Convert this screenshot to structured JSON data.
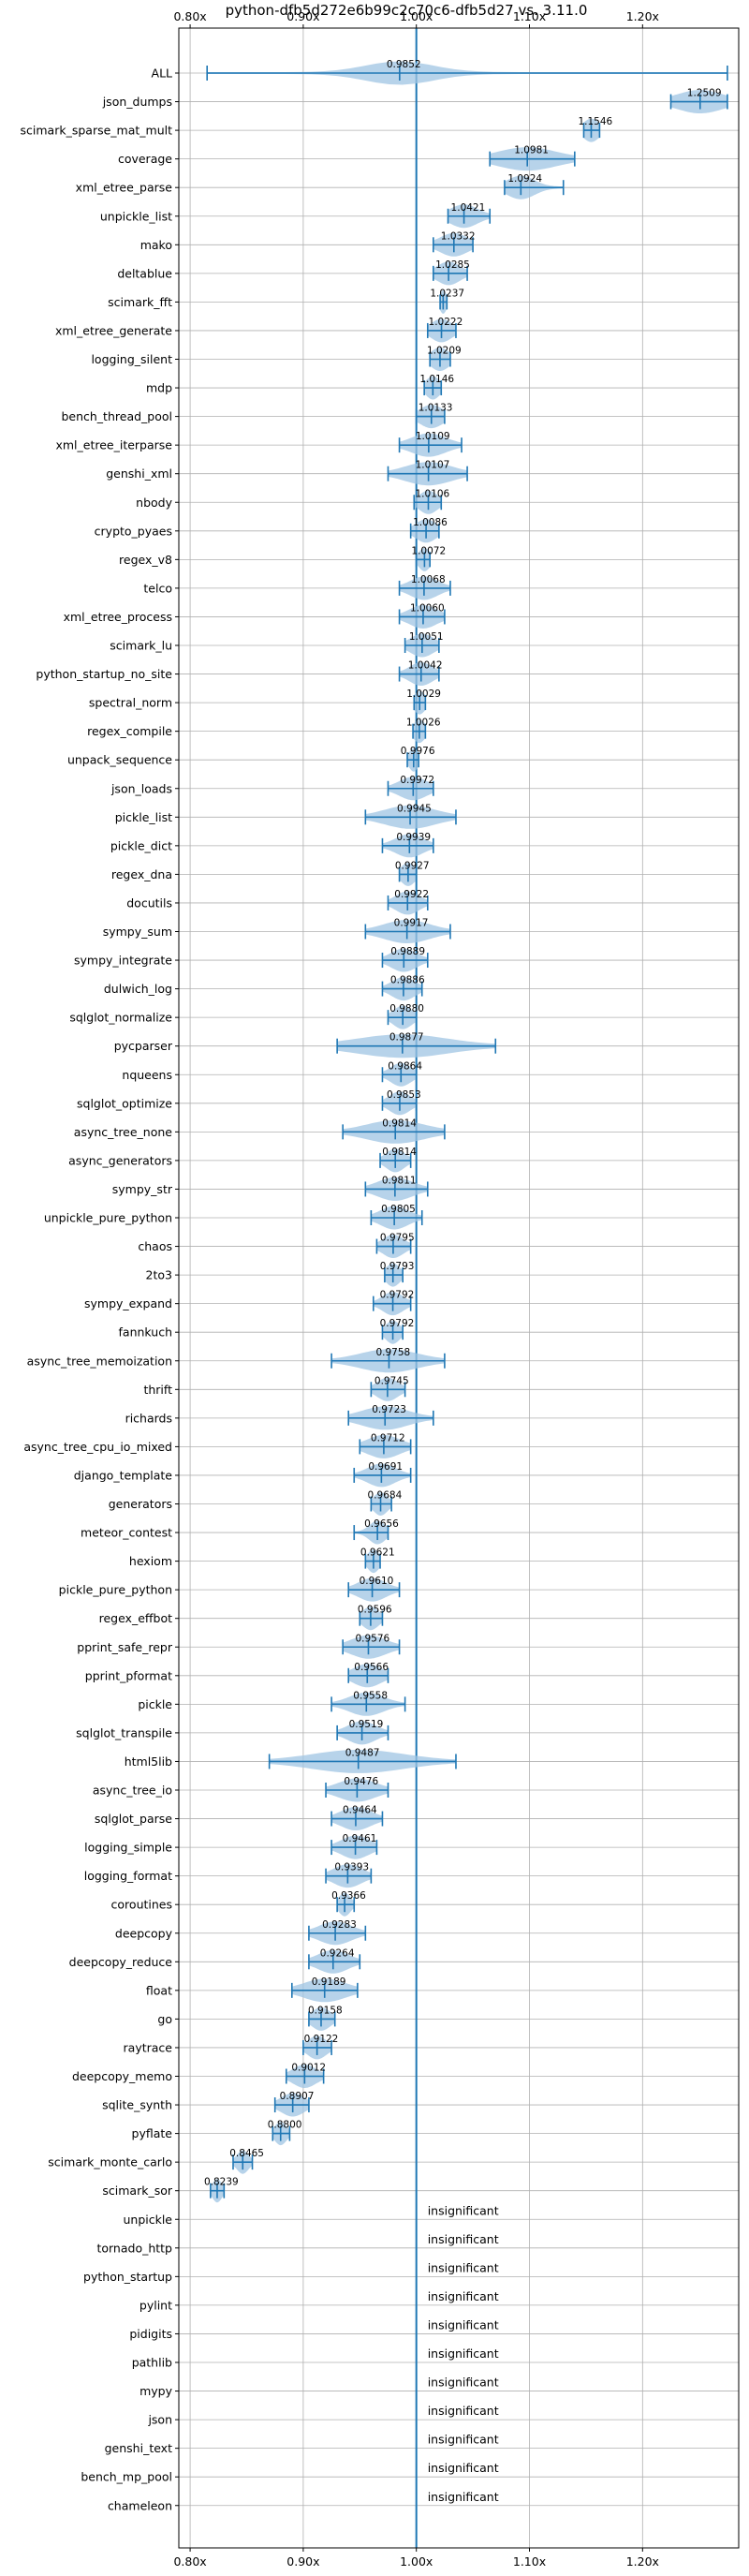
{
  "chart_data": {
    "type": "violin",
    "title": "python-dfb5d272e6b99c2c70c6-dfb5d27 vs. 3.11.0",
    "xlim": [
      0.79,
      1.285
    ],
    "xticks": [
      0.8,
      0.9,
      1.0,
      1.1,
      1.2
    ],
    "xtick_labels": [
      "0.80x",
      "0.90x",
      "1.00x",
      "1.10x",
      "1.20x"
    ],
    "reference_line": 1.0,
    "grid": true,
    "insignificant_label": "insignificant",
    "benchmarks": [
      {
        "name": "ALL",
        "value": 0.9852,
        "label": "0.9852",
        "min": 0.815,
        "max": 1.275,
        "spread": 0.03
      },
      {
        "name": "json_dumps",
        "value": 1.2509,
        "label": "1.2509",
        "min": 1.225,
        "max": 1.275,
        "spread": 0.02
      },
      {
        "name": "scimark_sparse_mat_mult",
        "value": 1.1546,
        "label": "1.1546",
        "min": 1.148,
        "max": 1.162,
        "spread": 0.007
      },
      {
        "name": "coverage",
        "value": 1.0981,
        "label": "1.0981",
        "min": 1.065,
        "max": 1.14,
        "spread": 0.025
      },
      {
        "name": "xml_etree_parse",
        "value": 1.0924,
        "label": "1.0924",
        "min": 1.078,
        "max": 1.13,
        "spread": 0.012
      },
      {
        "name": "unpickle_list",
        "value": 1.0421,
        "label": "1.0421",
        "min": 1.028,
        "max": 1.065,
        "spread": 0.012
      },
      {
        "name": "mako",
        "value": 1.0332,
        "label": "1.0332",
        "min": 1.015,
        "max": 1.05,
        "spread": 0.012
      },
      {
        "name": "deltablue",
        "value": 1.0285,
        "label": "1.0285",
        "min": 1.015,
        "max": 1.045,
        "spread": 0.01
      },
      {
        "name": "scimark_fft",
        "value": 1.0237,
        "label": "1.0237",
        "min": 1.021,
        "max": 1.027,
        "spread": 0.003
      },
      {
        "name": "xml_etree_generate",
        "value": 1.0222,
        "label": "1.0222",
        "min": 1.01,
        "max": 1.035,
        "spread": 0.009
      },
      {
        "name": "logging_silent",
        "value": 1.0209,
        "label": "1.0209",
        "min": 1.012,
        "max": 1.03,
        "spread": 0.008
      },
      {
        "name": "mdp",
        "value": 1.0146,
        "label": "1.0146",
        "min": 1.007,
        "max": 1.022,
        "spread": 0.006
      },
      {
        "name": "bench_thread_pool",
        "value": 1.0133,
        "label": "1.0133",
        "min": 1.0,
        "max": 1.025,
        "spread": 0.01
      },
      {
        "name": "xml_etree_iterparse",
        "value": 1.0109,
        "label": "1.0109",
        "min": 0.985,
        "max": 1.04,
        "spread": 0.015
      },
      {
        "name": "genshi_xml",
        "value": 1.0107,
        "label": "1.0107",
        "min": 0.975,
        "max": 1.045,
        "spread": 0.02
      },
      {
        "name": "nbody",
        "value": 1.0106,
        "label": "1.0106",
        "min": 0.998,
        "max": 1.022,
        "spread": 0.008
      },
      {
        "name": "crypto_pyaes",
        "value": 1.0086,
        "label": "1.0086",
        "min": 0.995,
        "max": 1.02,
        "spread": 0.009
      },
      {
        "name": "regex_v8",
        "value": 1.0072,
        "label": "1.0072",
        "min": 1.0,
        "max": 1.012,
        "spread": 0.005
      },
      {
        "name": "telco",
        "value": 1.0068,
        "label": "1.0068",
        "min": 0.985,
        "max": 1.03,
        "spread": 0.012
      },
      {
        "name": "xml_etree_process",
        "value": 1.006,
        "label": "1.0060",
        "min": 0.985,
        "max": 1.025,
        "spread": 0.012
      },
      {
        "name": "scimark_lu",
        "value": 1.0051,
        "label": "1.0051",
        "min": 0.99,
        "max": 1.02,
        "spread": 0.01
      },
      {
        "name": "python_startup_no_site",
        "value": 1.0042,
        "label": "1.0042",
        "min": 0.985,
        "max": 1.02,
        "spread": 0.01
      },
      {
        "name": "spectral_norm",
        "value": 1.0029,
        "label": "1.0029",
        "min": 0.998,
        "max": 1.008,
        "spread": 0.005
      },
      {
        "name": "regex_compile",
        "value": 1.0026,
        "label": "1.0026",
        "min": 0.997,
        "max": 1.008,
        "spread": 0.005
      },
      {
        "name": "unpack_sequence",
        "value": 0.9976,
        "label": "0.9976",
        "min": 0.992,
        "max": 1.002,
        "spread": 0.004
      },
      {
        "name": "json_loads",
        "value": 0.9972,
        "label": "0.9972",
        "min": 0.975,
        "max": 1.015,
        "spread": 0.012
      },
      {
        "name": "pickle_list",
        "value": 0.9945,
        "label": "0.9945",
        "min": 0.955,
        "max": 1.035,
        "spread": 0.022
      },
      {
        "name": "pickle_dict",
        "value": 0.9939,
        "label": "0.9939",
        "min": 0.97,
        "max": 1.015,
        "spread": 0.012
      },
      {
        "name": "regex_dna",
        "value": 0.9927,
        "label": "0.9927",
        "min": 0.985,
        "max": 1.0,
        "spread": 0.006
      },
      {
        "name": "docutils",
        "value": 0.9922,
        "label": "0.9922",
        "min": 0.975,
        "max": 1.01,
        "spread": 0.01
      },
      {
        "name": "sympy_sum",
        "value": 0.9917,
        "label": "0.9917",
        "min": 0.955,
        "max": 1.03,
        "spread": 0.02
      },
      {
        "name": "sympy_integrate",
        "value": 0.9889,
        "label": "0.9889",
        "min": 0.97,
        "max": 1.01,
        "spread": 0.011
      },
      {
        "name": "dulwich_log",
        "value": 0.9886,
        "label": "0.9886",
        "min": 0.97,
        "max": 1.005,
        "spread": 0.01
      },
      {
        "name": "sqlglot_normalize",
        "value": 0.988,
        "label": "0.9880",
        "min": 0.975,
        "max": 1.0,
        "spread": 0.008
      },
      {
        "name": "pycparser",
        "value": 0.9877,
        "label": "0.9877",
        "min": 0.93,
        "max": 1.07,
        "spread": 0.04
      },
      {
        "name": "nqueens",
        "value": 0.9864,
        "label": "0.9864",
        "min": 0.97,
        "max": 1.0,
        "spread": 0.009
      },
      {
        "name": "sqlglot_optimize",
        "value": 0.9853,
        "label": "0.9853",
        "min": 0.97,
        "max": 1.0,
        "spread": 0.009
      },
      {
        "name": "async_tree_none",
        "value": 0.9814,
        "label": "0.9814",
        "min": 0.935,
        "max": 1.025,
        "spread": 0.025
      },
      {
        "name": "async_generators",
        "value": 0.9814,
        "label": "0.9814",
        "min": 0.968,
        "max": 0.995,
        "spread": 0.008
      },
      {
        "name": "sympy_str",
        "value": 0.9811,
        "label": "0.9811",
        "min": 0.955,
        "max": 1.01,
        "spread": 0.015
      },
      {
        "name": "unpickle_pure_python",
        "value": 0.9805,
        "label": "0.9805",
        "min": 0.96,
        "max": 1.005,
        "spread": 0.012
      },
      {
        "name": "chaos",
        "value": 0.9795,
        "label": "0.9795",
        "min": 0.965,
        "max": 0.995,
        "spread": 0.009
      },
      {
        "name": "2to3",
        "value": 0.9793,
        "label": "0.9793",
        "min": 0.972,
        "max": 0.988,
        "spread": 0.006
      },
      {
        "name": "sympy_expand",
        "value": 0.9792,
        "label": "0.9792",
        "min": 0.962,
        "max": 0.995,
        "spread": 0.009
      },
      {
        "name": "fannkuch",
        "value": 0.9792,
        "label": "0.9792",
        "min": 0.97,
        "max": 0.988,
        "spread": 0.006
      },
      {
        "name": "async_tree_memoization",
        "value": 0.9758,
        "label": "0.9758",
        "min": 0.925,
        "max": 1.025,
        "spread": 0.025
      },
      {
        "name": "thrift",
        "value": 0.9745,
        "label": "0.9745",
        "min": 0.96,
        "max": 0.99,
        "spread": 0.009
      },
      {
        "name": "richards",
        "value": 0.9723,
        "label": "0.9723",
        "min": 0.94,
        "max": 1.015,
        "spread": 0.02
      },
      {
        "name": "async_tree_cpu_io_mixed",
        "value": 0.9712,
        "label": "0.9712",
        "min": 0.95,
        "max": 0.995,
        "spread": 0.014
      },
      {
        "name": "django_template",
        "value": 0.9691,
        "label": "0.9691",
        "min": 0.945,
        "max": 0.995,
        "spread": 0.012
      },
      {
        "name": "generators",
        "value": 0.9684,
        "label": "0.9684",
        "min": 0.96,
        "max": 0.978,
        "spread": 0.006
      },
      {
        "name": "meteor_contest",
        "value": 0.9656,
        "label": "0.9656",
        "min": 0.945,
        "max": 0.975,
        "spread": 0.007
      },
      {
        "name": "hexiom",
        "value": 0.9621,
        "label": "0.9621",
        "min": 0.955,
        "max": 0.968,
        "spread": 0.005
      },
      {
        "name": "pickle_pure_python",
        "value": 0.961,
        "label": "0.9610",
        "min": 0.94,
        "max": 0.985,
        "spread": 0.012
      },
      {
        "name": "regex_effbot",
        "value": 0.9596,
        "label": "0.9596",
        "min": 0.95,
        "max": 0.97,
        "spread": 0.007
      },
      {
        "name": "pprint_safe_repr",
        "value": 0.9576,
        "label": "0.9576",
        "min": 0.935,
        "max": 0.985,
        "spread": 0.015
      },
      {
        "name": "pprint_pformat",
        "value": 0.9566,
        "label": "0.9566",
        "min": 0.94,
        "max": 0.975,
        "spread": 0.012
      },
      {
        "name": "pickle",
        "value": 0.9558,
        "label": "0.9558",
        "min": 0.925,
        "max": 0.99,
        "spread": 0.015
      },
      {
        "name": "sqlglot_transpile",
        "value": 0.9519,
        "label": "0.9519",
        "min": 0.93,
        "max": 0.975,
        "spread": 0.012
      },
      {
        "name": "html5lib",
        "value": 0.9487,
        "label": "0.9487",
        "min": 0.87,
        "max": 1.035,
        "spread": 0.04
      },
      {
        "name": "async_tree_io",
        "value": 0.9476,
        "label": "0.9476",
        "min": 0.92,
        "max": 0.975,
        "spread": 0.016
      },
      {
        "name": "sqlglot_parse",
        "value": 0.9464,
        "label": "0.9464",
        "min": 0.925,
        "max": 0.97,
        "spread": 0.013
      },
      {
        "name": "logging_simple",
        "value": 0.9461,
        "label": "0.9461",
        "min": 0.925,
        "max": 0.965,
        "spread": 0.012
      },
      {
        "name": "logging_format",
        "value": 0.9393,
        "label": "0.9393",
        "min": 0.92,
        "max": 0.96,
        "spread": 0.012
      },
      {
        "name": "coroutines",
        "value": 0.9366,
        "label": "0.9366",
        "min": 0.93,
        "max": 0.945,
        "spread": 0.005
      },
      {
        "name": "deepcopy",
        "value": 0.9283,
        "label": "0.9283",
        "min": 0.905,
        "max": 0.955,
        "spread": 0.014
      },
      {
        "name": "deepcopy_reduce",
        "value": 0.9264,
        "label": "0.9264",
        "min": 0.905,
        "max": 0.95,
        "spread": 0.013
      },
      {
        "name": "float",
        "value": 0.9189,
        "label": "0.9189",
        "min": 0.89,
        "max": 0.948,
        "spread": 0.018
      },
      {
        "name": "go",
        "value": 0.9158,
        "label": "0.9158",
        "min": 0.905,
        "max": 0.928,
        "spread": 0.008
      },
      {
        "name": "raytrace",
        "value": 0.9122,
        "label": "0.9122",
        "min": 0.9,
        "max": 0.925,
        "spread": 0.008
      },
      {
        "name": "deepcopy_memo",
        "value": 0.9012,
        "label": "0.9012",
        "min": 0.885,
        "max": 0.918,
        "spread": 0.01
      },
      {
        "name": "sqlite_synth",
        "value": 0.8907,
        "label": "0.8907",
        "min": 0.875,
        "max": 0.905,
        "spread": 0.01
      },
      {
        "name": "pyflate",
        "value": 0.88,
        "label": "0.8800",
        "min": 0.873,
        "max": 0.888,
        "spread": 0.005
      },
      {
        "name": "scimark_monte_carlo",
        "value": 0.8465,
        "label": "0.8465",
        "min": 0.838,
        "max": 0.855,
        "spread": 0.005
      },
      {
        "name": "scimark_sor",
        "value": 0.8239,
        "label": "0.8239",
        "min": 0.818,
        "max": 0.83,
        "spread": 0.004
      },
      {
        "name": "unpickle",
        "value": null,
        "label": ""
      },
      {
        "name": "tornado_http",
        "value": null,
        "label": ""
      },
      {
        "name": "python_startup",
        "value": null,
        "label": ""
      },
      {
        "name": "pylint",
        "value": null,
        "label": ""
      },
      {
        "name": "pidigits",
        "value": null,
        "label": ""
      },
      {
        "name": "pathlib",
        "value": null,
        "label": ""
      },
      {
        "name": "mypy",
        "value": null,
        "label": ""
      },
      {
        "name": "json",
        "value": null,
        "label": ""
      },
      {
        "name": "genshi_text",
        "value": null,
        "label": ""
      },
      {
        "name": "bench_mp_pool",
        "value": null,
        "label": ""
      },
      {
        "name": "chameleon",
        "value": null,
        "label": ""
      }
    ]
  }
}
